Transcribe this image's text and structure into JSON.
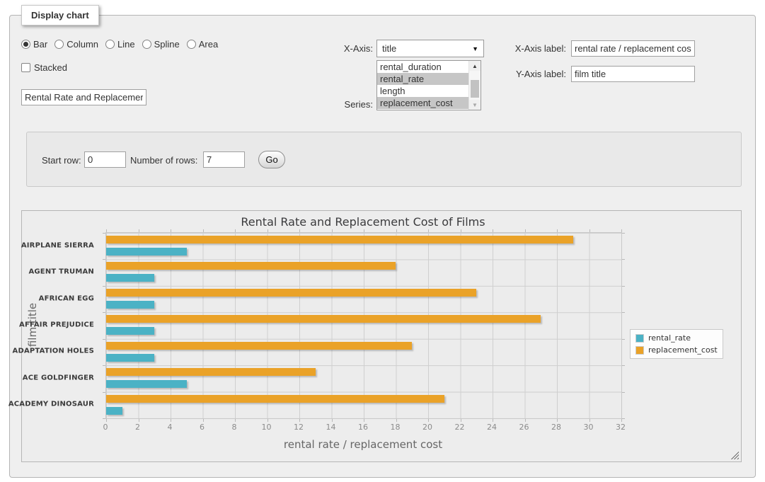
{
  "window": {
    "legend_title": "Display chart"
  },
  "chart_type": {
    "options": [
      {
        "label": "Bar",
        "checked": true
      },
      {
        "label": "Column",
        "checked": false
      },
      {
        "label": "Line",
        "checked": false
      },
      {
        "label": "Spline",
        "checked": false
      },
      {
        "label": "Area",
        "checked": false
      }
    ]
  },
  "stacked_checkbox": {
    "label": "Stacked",
    "checked": false
  },
  "chart_title_input": {
    "value": "Rental Rate and Replacement Cost of Films"
  },
  "x_axis_select": {
    "label": "X-Axis:",
    "selected_value": "title",
    "arrow_icon": "▼"
  },
  "series_listbox": {
    "label": "Series:",
    "options": [
      {
        "label": "rental_duration",
        "selected": false
      },
      {
        "label": "rental_rate",
        "selected": true
      },
      {
        "label": "length",
        "selected": false
      },
      {
        "label": "replacement_cost",
        "selected": true
      }
    ],
    "scrollbar": {
      "up_icon": "▲",
      "down_icon": "▼"
    }
  },
  "x_axis_label_input": {
    "label": "X-Axis label:",
    "value": "rental rate / replacement cost"
  },
  "y_axis_label_input": {
    "label": "Y-Axis label:",
    "value": "film title"
  },
  "row_controls": {
    "start_row_label": "Start row:",
    "start_row_value": "0",
    "number_of_rows_label": "Number of rows:",
    "number_of_rows_value": "7",
    "go_button_label": "Go"
  },
  "chart_data": {
    "type": "bar",
    "orientation": "horizontal",
    "title": "Rental Rate and Replacement Cost of Films",
    "xlabel": "rental rate / replacement cost",
    "ylabel": "film title",
    "categories": [
      "AIRPLANE SIERRA",
      "AGENT TRUMAN",
      "AFRICAN EGG",
      "AFFAIR PREJUDICE",
      "ADAPTATION HOLES",
      "ACE GOLDFINGER",
      "ACADEMY DINOSAUR"
    ],
    "series": [
      {
        "name": "rental_rate",
        "color": "#4bb2c5",
        "values": [
          4.99,
          2.99,
          2.99,
          2.99,
          2.99,
          4.99,
          0.99
        ]
      },
      {
        "name": "replacement_cost",
        "color": "#eaa228",
        "values": [
          28.99,
          17.99,
          22.99,
          26.99,
          18.99,
          12.99,
          20.99
        ]
      }
    ],
    "xlim": [
      0,
      32
    ],
    "xticks": [
      0,
      2,
      4,
      6,
      8,
      10,
      12,
      14,
      16,
      18,
      20,
      22,
      24,
      26,
      28,
      30,
      32
    ],
    "grid": true,
    "legend_position": "right",
    "colors": {
      "grid_background": "#ececec",
      "gridline": "#cfcfcf"
    }
  }
}
